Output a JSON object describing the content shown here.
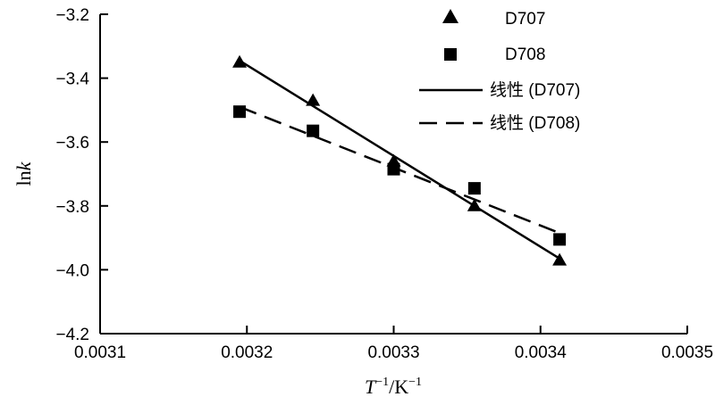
{
  "chart_data": {
    "type": "scatter",
    "xlabel": {
      "italic": "T",
      "sup1": "−1",
      "rest": "/K",
      "sup2": "−1"
    },
    "ylabel": {
      "plain": "ln",
      "italic": "k"
    },
    "xlim": [
      0.0031,
      0.0035
    ],
    "ylim": [
      -4.2,
      -3.2
    ],
    "xticks": [
      0.0031,
      0.0032,
      0.0033,
      0.0034,
      0.0035
    ],
    "xtick_labels": [
      "0.0031",
      "0.0032",
      "0.0033",
      "0.0034",
      "0.0035"
    ],
    "yticks": [
      -3.2,
      -3.4,
      -3.6,
      -3.8,
      -4.0,
      -4.2
    ],
    "ytick_labels": [
      "−3.2",
      "−3.4",
      "−3.6",
      "−3.8",
      "−4.0",
      "−4.2"
    ],
    "grid": false,
    "legend_position": "top-right",
    "series": [
      {
        "name": "D707",
        "marker": "triangle",
        "points": [
          {
            "x": 0.003195,
            "y": -3.35
          },
          {
            "x": 0.003245,
            "y": -3.47
          },
          {
            "x": 0.0033,
            "y": -3.66
          },
          {
            "x": 0.003355,
            "y": -3.8
          },
          {
            "x": 0.003413,
            "y": -3.97
          }
        ]
      },
      {
        "name": "D708",
        "marker": "square",
        "points": [
          {
            "x": 0.003195,
            "y": -3.505
          },
          {
            "x": 0.003245,
            "y": -3.565
          },
          {
            "x": 0.0033,
            "y": -3.685
          },
          {
            "x": 0.003355,
            "y": -3.745
          },
          {
            "x": 0.003413,
            "y": -3.905
          }
        ]
      }
    ],
    "fits": [
      {
        "name": "线性 (D707)",
        "style": "solid",
        "from": {
          "x": 0.003195,
          "y": -3.345
        },
        "to": {
          "x": 0.003413,
          "y": -3.965
        }
      },
      {
        "name": "线性 (D708)",
        "style": "dashed",
        "from": {
          "x": 0.003195,
          "y": -3.49
        },
        "to": {
          "x": 0.003413,
          "y": -3.885
        }
      }
    ]
  }
}
